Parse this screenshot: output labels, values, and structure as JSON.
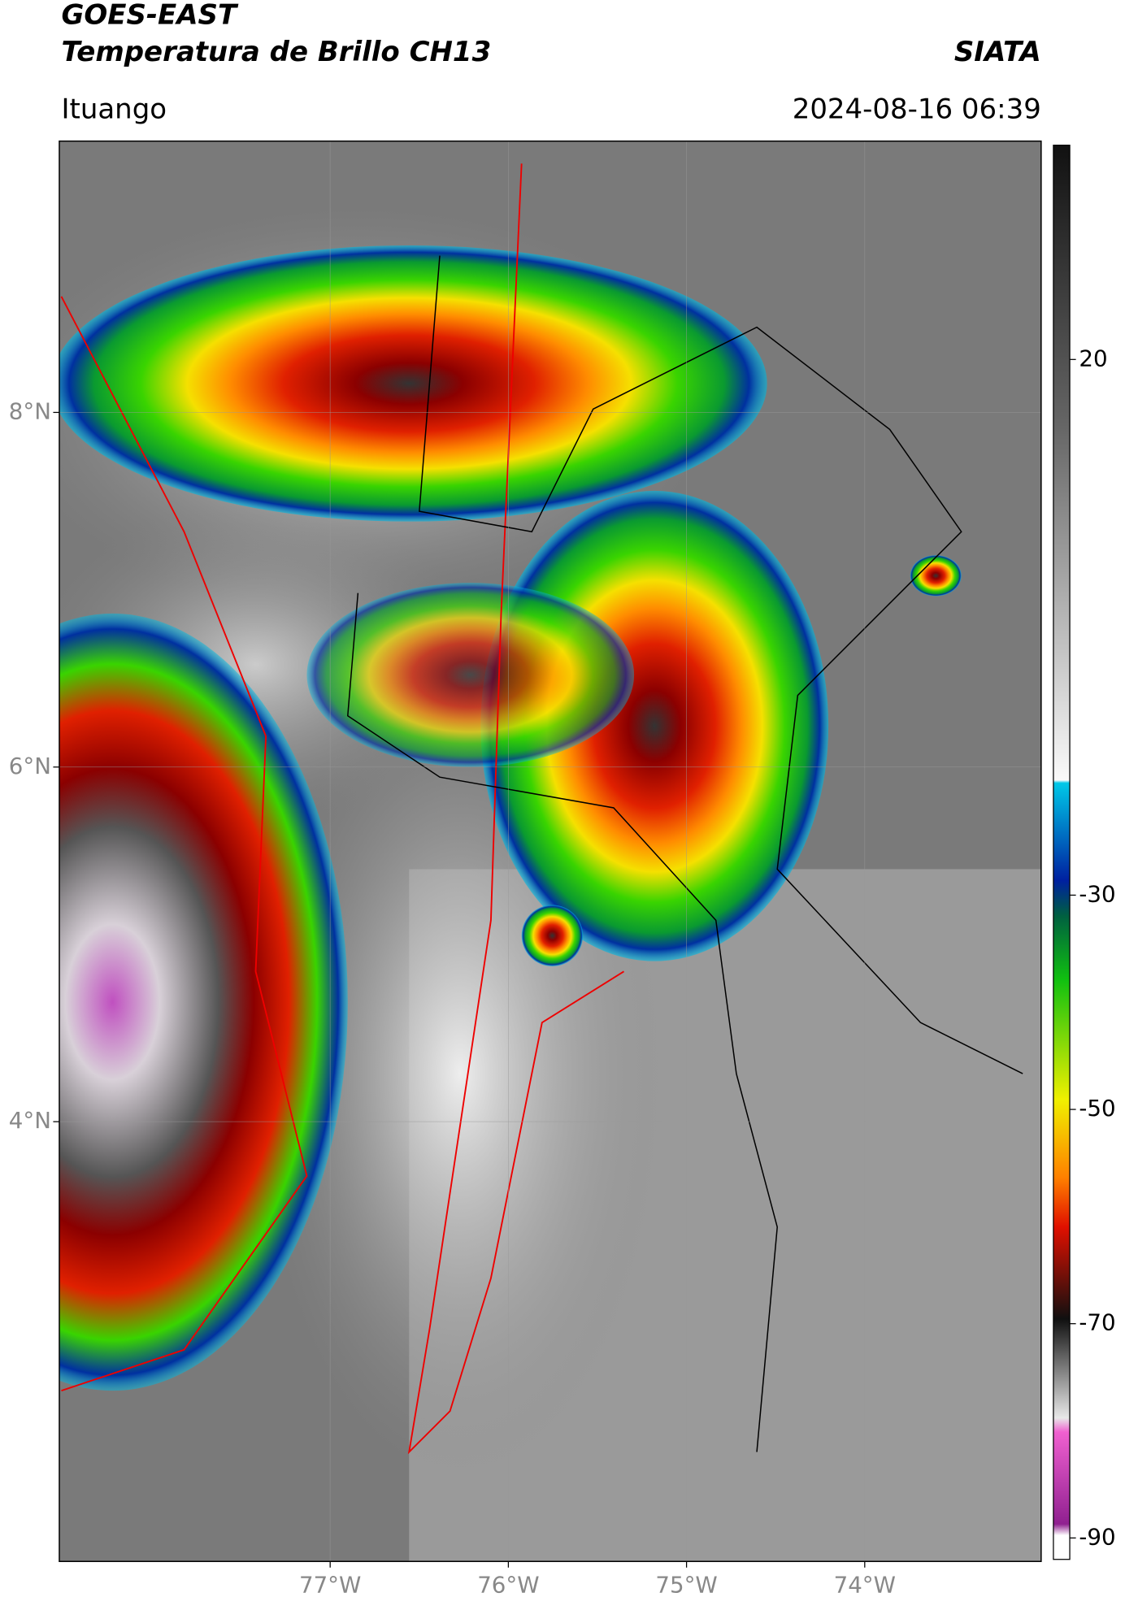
{
  "header": {
    "title": "GOES-EAST",
    "subtitle": "Temperatura de Brillo CH13",
    "agency": "SIATA",
    "location": "Ituango",
    "datetime": "2024-08-16 06:39"
  },
  "map": {
    "xlim": [
      -78.52,
      -73.01
    ],
    "ylim": [
      1.52,
      9.53
    ],
    "xticks": [
      {
        "value": -77,
        "label": "77°W"
      },
      {
        "value": -76,
        "label": "76°W"
      },
      {
        "value": -75,
        "label": "75°W"
      },
      {
        "value": -74,
        "label": "74°W"
      }
    ],
    "yticks": [
      {
        "value": 8,
        "label": "8°N"
      },
      {
        "value": 6,
        "label": "6°N"
      },
      {
        "value": 4,
        "label": "4°N"
      }
    ]
  },
  "colorbar": {
    "range": [
      -92,
      40
    ],
    "ticks": [
      20,
      -30,
      -50,
      -70,
      -90
    ]
  }
}
